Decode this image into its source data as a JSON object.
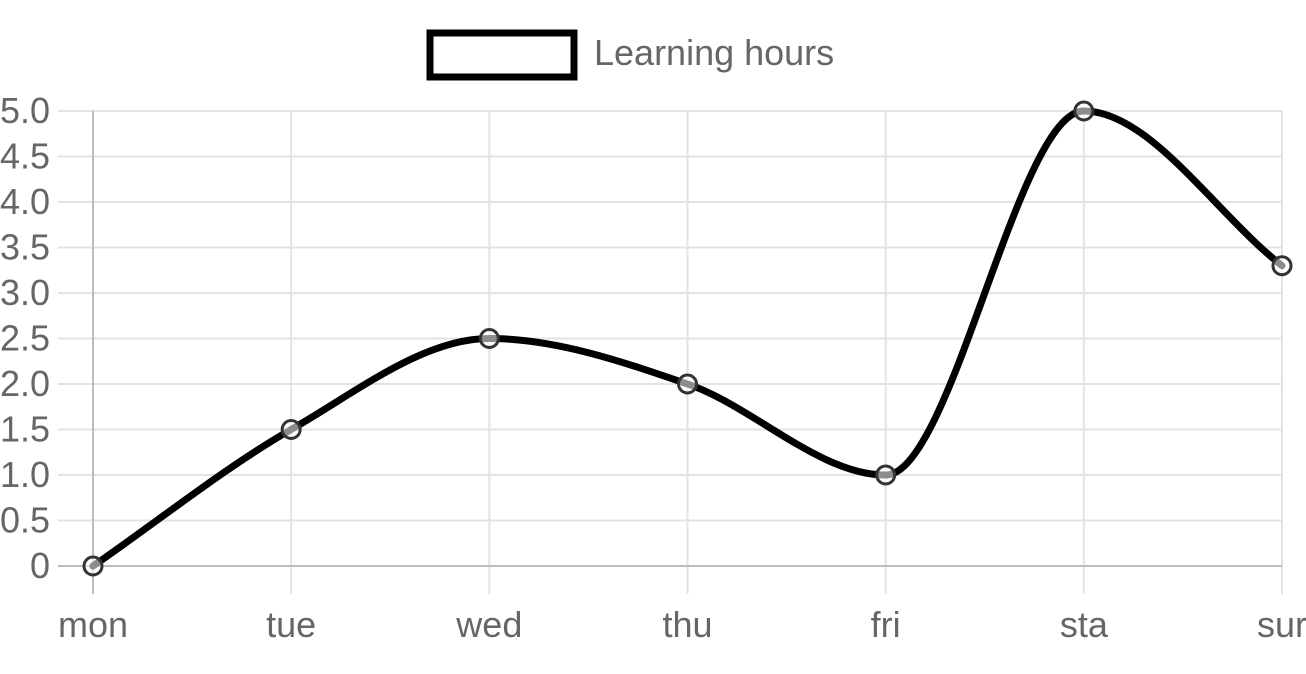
{
  "chart_data": {
    "type": "line",
    "categories": [
      "mon",
      "tue",
      "wed",
      "thu",
      "fri",
      "sta",
      "sur"
    ],
    "series": [
      {
        "name": "Learning hours",
        "values": [
          0,
          1.5,
          2.5,
          2.0,
          1.0,
          5.0,
          3.3
        ],
        "color": "#000000"
      }
    ],
    "y_ticks": [
      "0",
      "0.5",
      "1.0",
      "1.5",
      "2.0",
      "2.5",
      "3.0",
      "3.5",
      "4.0",
      "4.5",
      "5.0"
    ],
    "ylim": [
      0,
      5.0
    ],
    "grid": true,
    "legend_position": "top-center",
    "smooth": true,
    "title": "",
    "xlabel": "",
    "ylabel": ""
  }
}
